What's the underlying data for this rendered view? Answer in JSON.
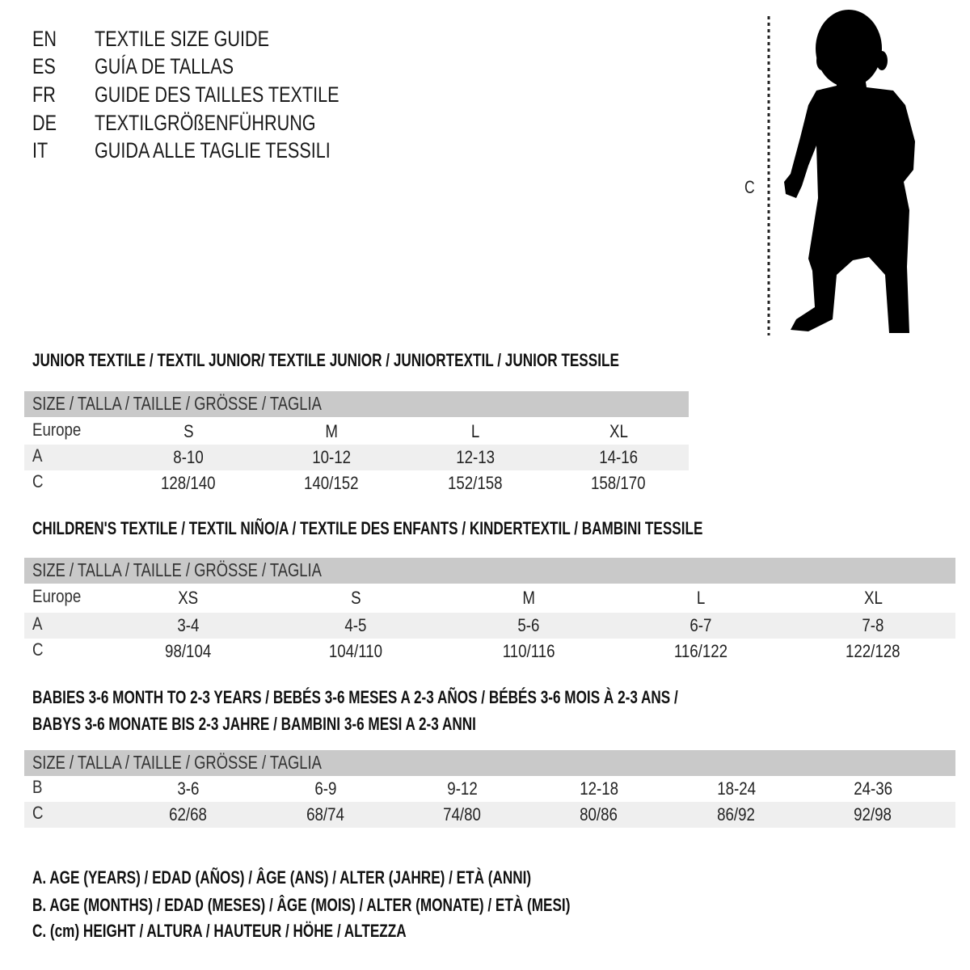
{
  "languages": [
    {
      "code": "EN",
      "title": "TEXTILE SIZE GUIDE"
    },
    {
      "code": "ES",
      "title": "GUÍA DE TALLAS"
    },
    {
      "code": "FR",
      "title": "GUIDE DES TAILLES TEXTILE"
    },
    {
      "code": "DE",
      "title": "TEXTILGRÖßENFÜHRUNG"
    },
    {
      "code": "IT",
      "title": "GUIDA ALLE TAGLIE TESSILI"
    }
  ],
  "figure": {
    "height_label": "C",
    "icon": "child-silhouette-icon"
  },
  "colors": {
    "header_row": "#c9c9c9",
    "shaded_row": "#efefef"
  },
  "sections": [
    {
      "title_lines": [
        "JUNIOR TEXTILE / TEXTIL JUNIOR/ TEXTILE JUNIOR / JUNIORTEXTIL / JUNIOR TESSILE"
      ],
      "header": "SIZE / TALLA / TAILLE / GRÖSSE / TAGLIA",
      "rows": [
        {
          "label": "Europe",
          "values": [
            "S",
            "M",
            "L",
            "XL"
          ]
        },
        {
          "label": "A",
          "values": [
            "8-10",
            "10-12",
            "12-13",
            "14-16"
          ]
        },
        {
          "label": "C",
          "values": [
            "128/140",
            "140/152",
            "152/158",
            "158/170"
          ]
        }
      ]
    },
    {
      "title_lines": [
        "CHILDREN'S TEXTILE / TEXTIL NIÑO/A / TEXTILE DES ENFANTS / KINDERTEXTIL / BAMBINI TESSILE"
      ],
      "header": "SIZE / TALLA / TAILLE / GRÖSSE / TAGLIA",
      "rows": [
        {
          "label": "Europe",
          "values": [
            "XS",
            "S",
            "M",
            "L",
            "XL"
          ]
        },
        {
          "label": "A",
          "values": [
            "3-4",
            "4-5",
            "5-6",
            "6-7",
            "7-8"
          ]
        },
        {
          "label": "C",
          "values": [
            "98/104",
            "104/110",
            "110/116",
            "116/122",
            "122/128"
          ]
        }
      ]
    },
    {
      "title_lines": [
        "BABIES 3-6 MONTH TO 2-3 YEARS / BEBÉS 3-6 MESES A 2-3 AÑOS / BÉBÉS 3-6 MOIS À 2-3 ANS /",
        "BABYS 3-6 MONATE BIS 2-3 JAHRE / BAMBINI 3-6 MESI A 2-3 ANNI"
      ],
      "header": "SIZE / TALLA / TAILLE / GRÖSSE / TAGLIA",
      "rows": [
        {
          "label": "B",
          "values": [
            "3-6",
            "6-9",
            "9-12",
            "12-18",
            "18-24",
            "24-36"
          ]
        },
        {
          "label": "C",
          "values": [
            "62/68",
            "68/74",
            "74/80",
            "80/86",
            "86/92",
            "92/98"
          ]
        }
      ]
    }
  ],
  "legend": [
    "A. AGE (YEARS) / EDAD (AÑOS) / ÂGE (ANS) / ALTER (JAHRE) / ETÀ (ANNI)",
    "B. AGE (MONTHS) / EDAD (MESES) / ÂGE (MOIS) / ALTER (MONATE) / ETÀ (MESI)",
    "C. (cm) HEIGHT / ALTURA / HAUTEUR / HÖHE / ALTEZZA"
  ]
}
